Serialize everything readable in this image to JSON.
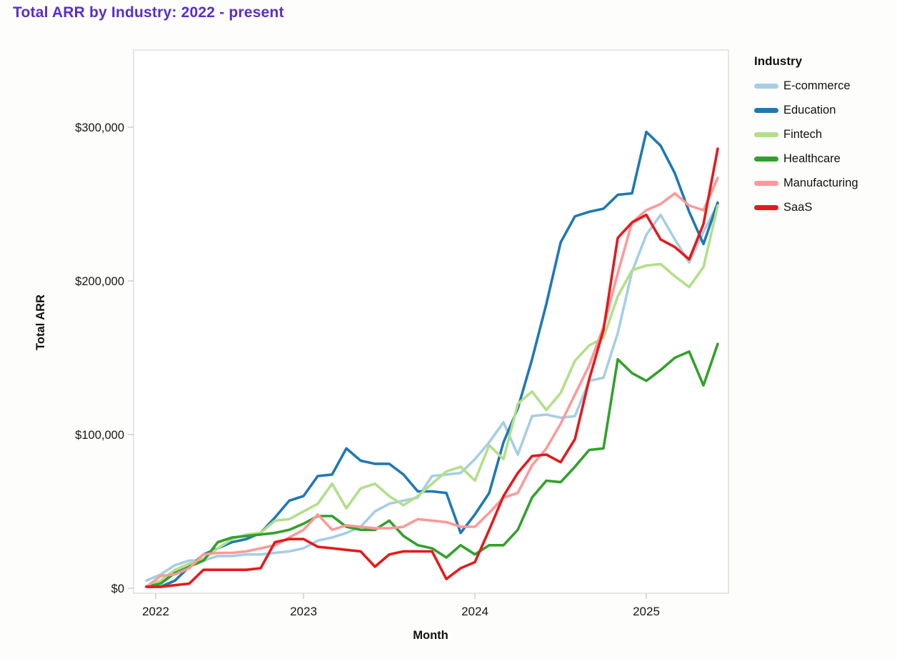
{
  "title": {
    "text": "Total ARR by Industry: 2022 - present",
    "color": "#5a2ec6"
  },
  "axes": {
    "y_title": "Total ARR",
    "x_title": "Month",
    "y_tick_labels": [
      "$0",
      "$100,000",
      "$200,000",
      "$300,000"
    ],
    "x_tick_labels": [
      "2022",
      "2023",
      "2024",
      "2025"
    ]
  },
  "legend": {
    "title": "Industry"
  },
  "colors": {
    "border": "#dcdcdc",
    "tick": "#cccccc",
    "text": "#161616"
  },
  "chart_data": {
    "type": "line",
    "title": "Total ARR by Industry: 2022 - present",
    "xlabel": "Month",
    "ylabel": "Total ARR",
    "legend_title": "Industry",
    "legend_position": "right",
    "grid": false,
    "x_start_month": "2022-02",
    "x_end_month": "2025-06",
    "x_tick_labels": [
      "2022",
      "2023",
      "2024",
      "2025"
    ],
    "x_tick_month_index": [
      0.65,
      11,
      23,
      35
    ],
    "y_ticks": [
      0,
      100000,
      200000,
      300000
    ],
    "y_tick_labels": [
      "$0",
      "$100,000",
      "$200,000",
      "$300,000"
    ],
    "ylim": [
      0,
      355000
    ],
    "series": [
      {
        "name": "E-commerce",
        "color": "#a6cee3",
        "values": [
          5000,
          9000,
          15000,
          18000,
          18000,
          21000,
          21000,
          22000,
          22000,
          23000,
          24000,
          26000,
          31000,
          33000,
          36000,
          40000,
          50000,
          55000,
          57000,
          59000,
          73000,
          74000,
          75000,
          84000,
          95000,
          108000,
          87000,
          112000,
          113000,
          111000,
          112000,
          135000,
          137000,
          166000,
          206000,
          230000,
          243000,
          227000,
          212000,
          232000,
          250000
        ]
      },
      {
        "name": "Education",
        "color": "#1f78b4",
        "values": [
          1000,
          1000,
          5000,
          14000,
          22000,
          26000,
          30000,
          32000,
          36000,
          46000,
          57000,
          60000,
          73000,
          74000,
          91000,
          83000,
          81000,
          81000,
          74000,
          63000,
          63000,
          62000,
          36000,
          48000,
          62000,
          95000,
          117000,
          149000,
          185000,
          225000,
          242000,
          245000,
          247000,
          256000,
          257000,
          297000,
          288000,
          270000,
          245000,
          224000,
          251000
        ]
      },
      {
        "name": "Fintech",
        "color": "#b2df8a",
        "values": [
          1000,
          5000,
          12000,
          16000,
          19000,
          26000,
          32000,
          35000,
          36000,
          44000,
          45000,
          50000,
          55000,
          68000,
          52000,
          65000,
          68000,
          60000,
          54000,
          60000,
          68000,
          76000,
          79000,
          70000,
          93000,
          84000,
          120000,
          128000,
          116000,
          127000,
          148000,
          158000,
          163000,
          190000,
          207000,
          210000,
          211000,
          203000,
          196000,
          209000,
          249000
        ]
      },
      {
        "name": "Healthcare",
        "color": "#33a02c",
        "values": [
          1000,
          3000,
          10000,
          14000,
          18000,
          30000,
          33000,
          34000,
          35000,
          36000,
          38000,
          42000,
          47000,
          47000,
          40000,
          38000,
          38000,
          44000,
          34000,
          28000,
          26000,
          20000,
          28000,
          22000,
          28000,
          28000,
          38000,
          59000,
          70000,
          69000,
          79000,
          90000,
          91000,
          149000,
          140000,
          135000,
          142000,
          150000,
          154000,
          132000,
          159000
        ]
      },
      {
        "name": "Manufacturing",
        "color": "#fb9a99",
        "values": [
          1000,
          8000,
          9000,
          13000,
          22000,
          23000,
          23000,
          24000,
          26000,
          28000,
          33000,
          38000,
          48000,
          38000,
          41000,
          40000,
          39000,
          39000,
          40000,
          45000,
          44000,
          43000,
          40000,
          40000,
          49000,
          59000,
          62000,
          80000,
          91000,
          107000,
          126000,
          145000,
          170000,
          205000,
          238000,
          246000,
          250000,
          257000,
          249000,
          246000,
          267000
        ]
      },
      {
        "name": "SaaS",
        "color": "#e31a1c",
        "values": [
          1000,
          1000,
          2000,
          3000,
          12000,
          12000,
          12000,
          12000,
          13000,
          30000,
          32000,
          32000,
          27000,
          26000,
          25000,
          24000,
          14000,
          22000,
          24000,
          24000,
          24000,
          6000,
          13000,
          17000,
          38000,
          60000,
          75000,
          86000,
          87000,
          82000,
          97000,
          136000,
          168000,
          228000,
          238000,
          243000,
          227000,
          222000,
          214000,
          237000,
          286000
        ]
      }
    ]
  }
}
